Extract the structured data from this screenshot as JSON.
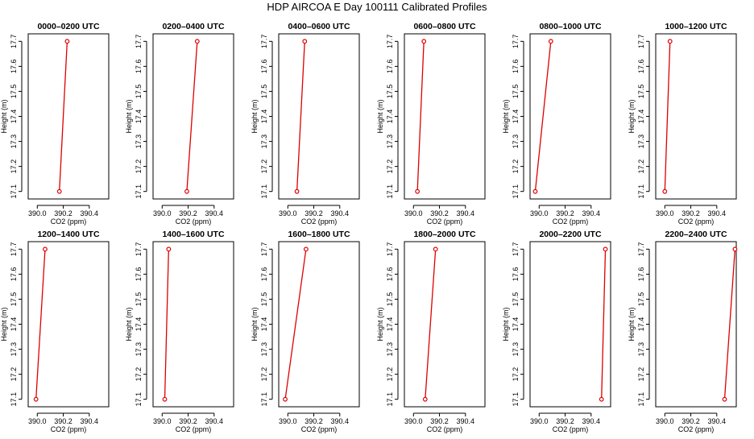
{
  "title": "HDP AIRCOA E  Day 100111  Calibrated Profiles",
  "chart_data": {
    "type": "line",
    "title": "HDP AIRCOA E  Day 100111  Calibrated Profiles",
    "xlabel": "CO2 (ppm)",
    "ylabel": "Height (m)",
    "xlim": [
      389.93,
      390.55
    ],
    "ylim": [
      17.07,
      17.73
    ],
    "xticks": [
      "390.0",
      "390.2",
      "390.4"
    ],
    "xtick_values": [
      390.0,
      390.2,
      390.4
    ],
    "yticks": [
      "17.1",
      "17.2",
      "17.3",
      "17.4",
      "17.5",
      "17.6",
      "17.7"
    ],
    "ytick_values": [
      17.1,
      17.2,
      17.3,
      17.4,
      17.5,
      17.6,
      17.7
    ],
    "line_color": "#dd0000",
    "panels": [
      {
        "title": "0000–0200 UTC",
        "points": [
          {
            "x": 390.17,
            "y": 17.1
          },
          {
            "x": 390.23,
            "y": 17.7
          }
        ]
      },
      {
        "title": "0200–0400 UTC",
        "points": [
          {
            "x": 390.19,
            "y": 17.1
          },
          {
            "x": 390.27,
            "y": 17.7
          }
        ]
      },
      {
        "title": "0400–0600 UTC",
        "points": [
          {
            "x": 390.07,
            "y": 17.1
          },
          {
            "x": 390.13,
            "y": 17.7
          }
        ]
      },
      {
        "title": "0600–0800 UTC",
        "points": [
          {
            "x": 390.03,
            "y": 17.1
          },
          {
            "x": 390.08,
            "y": 17.7
          }
        ]
      },
      {
        "title": "0800–1000 UTC",
        "points": [
          {
            "x": 389.97,
            "y": 17.1
          },
          {
            "x": 390.09,
            "y": 17.7
          }
        ]
      },
      {
        "title": "1000–1200 UTC",
        "points": [
          {
            "x": 390.0,
            "y": 17.1
          },
          {
            "x": 390.04,
            "y": 17.7
          }
        ]
      },
      {
        "title": "1200–1400 UTC",
        "points": [
          {
            "x": 389.99,
            "y": 17.1
          },
          {
            "x": 390.06,
            "y": 17.7
          }
        ]
      },
      {
        "title": "1400–1600 UTC",
        "points": [
          {
            "x": 390.02,
            "y": 17.1
          },
          {
            "x": 390.05,
            "y": 17.7
          }
        ]
      },
      {
        "title": "1600–1800 UTC",
        "points": [
          {
            "x": 389.98,
            "y": 17.1
          },
          {
            "x": 390.14,
            "y": 17.7
          }
        ]
      },
      {
        "title": "1800–2000 UTC",
        "points": [
          {
            "x": 390.09,
            "y": 17.1
          },
          {
            "x": 390.17,
            "y": 17.7
          }
        ]
      },
      {
        "title": "2000–2200 UTC",
        "points": [
          {
            "x": 390.48,
            "y": 17.1
          },
          {
            "x": 390.51,
            "y": 17.7
          }
        ]
      },
      {
        "title": "2200–2400 UTC",
        "points": [
          {
            "x": 390.46,
            "y": 17.1
          },
          {
            "x": 390.54,
            "y": 17.7
          }
        ]
      }
    ]
  }
}
